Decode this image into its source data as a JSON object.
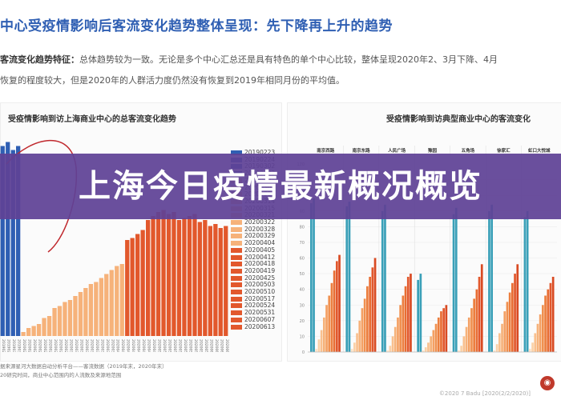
{
  "header": {
    "title": "中心受疫情影响后客流变化趋势整体呈现：先下降再上升的趋势",
    "line1_label": "客流变化趋势特征：",
    "line1_text": "总体趋势较为一致。无论是多个中心汇总还是具有特色的单个中心比较，整体呈现2020年2、3月下降、4月",
    "line2_text": "恢复的程度较大，但是2020年的人群活力度仍然没有恢复到2019年相同月份的平均值。"
  },
  "overlay": {
    "text": "上海今日疫情最新概况概览"
  },
  "footnotes": {
    "line1": "据来源星河大数据自动分析平台——客流数据（2019年末，2020年末）",
    "line2": "20研究时间，商业中心范围内的人流数及来源地范围"
  },
  "watermark": "©2020 7 Badu  [2020(2/2/2020)]",
  "colors": {
    "blue": "#2f5fb3",
    "light_orange": "#f6b27a",
    "dark_orange": "#e2582c",
    "teal": "#3aa0b8",
    "overlay": "#5f4296"
  },
  "chart_data": [
    {
      "type": "bar",
      "title": "受疫情影响到访上海商业中心的总客流变化趋势",
      "categories": [
        "20190223",
        "20190224",
        "20190302",
        "20190303",
        "20200201",
        "20200202",
        "20200208",
        "20200209",
        "20200215",
        "20200216",
        "20200222",
        "20200223",
        "20200229",
        "20200301",
        "20200307",
        "20200308",
        "20200314",
        "20200315",
        "20200321",
        "20200322",
        "20200328",
        "20200329",
        "20200404",
        "20200405",
        "20200411",
        "20200412",
        "20200418",
        "20200419",
        "20200425",
        "20200426",
        "20200502",
        "20200503",
        "20200509",
        "20200510",
        "20200516",
        "20200517",
        "20200523",
        "20200524",
        "20200530",
        "20200531",
        "20200606",
        "20200607",
        "20200613",
        "20200614"
      ],
      "values": [
        95,
        97,
        93,
        95,
        2,
        4,
        5,
        6,
        9,
        10,
        14,
        15,
        17,
        18,
        20,
        22,
        24,
        26,
        27,
        29,
        31,
        33,
        35,
        36,
        48,
        49,
        51,
        53,
        58,
        60,
        62,
        63,
        61,
        62,
        58,
        59,
        60,
        61,
        57,
        58,
        55,
        56,
        54,
        55
      ],
      "legend": [
        "20190223",
        "20190224",
        "20190302",
        "20190303",
        "20200301",
        "20200307",
        "20200308",
        "20200314",
        "20200315",
        "20200321",
        "20200322",
        "20200328",
        "20200329",
        "20200404",
        "20200405",
        "20200412",
        "20200418",
        "20200419",
        "20200425",
        "20200503",
        "20200510",
        "20200517",
        "20200524",
        "20200531",
        "20200607",
        "20200613"
      ],
      "legend_placement": "right"
    },
    {
      "type": "bar",
      "title": "受疫情影响到访典型商业中心的客流变化",
      "categories": [
        "南京西路",
        "南京东路",
        "人民广场",
        "豫园",
        "五角场",
        "徐家汇",
        "虹口大悦城"
      ],
      "yticks": [
        0,
        10,
        20,
        30,
        40,
        50,
        60,
        70,
        80,
        90,
        100,
        110,
        120
      ],
      "ylim": [
        0,
        120
      ],
      "bars_per_category": 12,
      "values": [
        [
          95,
          98,
          2,
          8,
          14,
          22,
          30,
          36,
          44,
          52,
          58,
          62
        ],
        [
          93,
          96,
          2,
          6,
          12,
          20,
          28,
          34,
          42,
          48,
          54,
          60
        ],
        [
          90,
          94,
          1,
          4,
          10,
          16,
          22,
          30,
          36,
          42,
          48,
          50
        ],
        [
          46,
          50,
          1,
          3,
          6,
          10,
          14,
          18,
          22,
          26,
          28,
          30
        ],
        [
          88,
          92,
          1,
          4,
          10,
          16,
          22,
          28,
          34,
          40,
          48,
          56
        ],
        [
          90,
          94,
          1,
          5,
          12,
          18,
          26,
          32,
          38,
          44,
          50,
          56
        ],
        [
          86,
          90,
          2,
          6,
          12,
          18,
          24,
          30,
          36,
          40,
          44,
          48
        ]
      ],
      "legend_placement": "none"
    }
  ]
}
